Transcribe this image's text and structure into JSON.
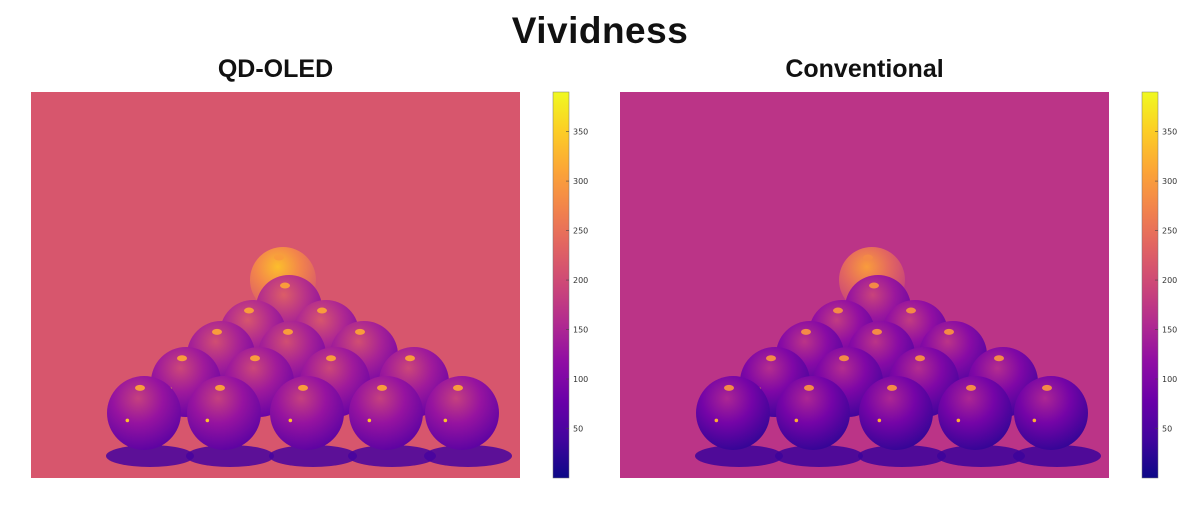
{
  "chart_data": [
    {
      "type": "heatmap",
      "title": "Vividness",
      "subtitle": "QD-OLED",
      "colormap": "plasma",
      "colorbar": {
        "min": 0,
        "max": 390,
        "ticks": [
          50,
          100,
          150,
          200,
          250,
          300,
          350
        ],
        "tick_labels": [
          "50",
          "100",
          "150",
          "200",
          "250",
          "300",
          "350"
        ]
      },
      "scene": "pyramid of glossy balls (triangle rack) on a flat surface",
      "background_value": 215,
      "front_ball_value": 115,
      "top_ball_value": 265,
      "shadow_value": 45,
      "highlight_value": 300
    },
    {
      "type": "heatmap",
      "title": "Vividness",
      "subtitle": "Conventional",
      "colormap": "plasma",
      "colorbar": {
        "min": 0,
        "max": 390,
        "ticks": [
          50,
          100,
          150,
          200,
          250,
          300,
          350
        ],
        "tick_labels": [
          "50",
          "100",
          "150",
          "200",
          "250",
          "300",
          "350"
        ]
      },
      "scene": "pyramid of glossy balls (triangle rack) on a flat surface",
      "background_value": 170,
      "front_ball_value": 80,
      "top_ball_value": 230,
      "shadow_value": 35,
      "highlight_value": 280
    }
  ]
}
